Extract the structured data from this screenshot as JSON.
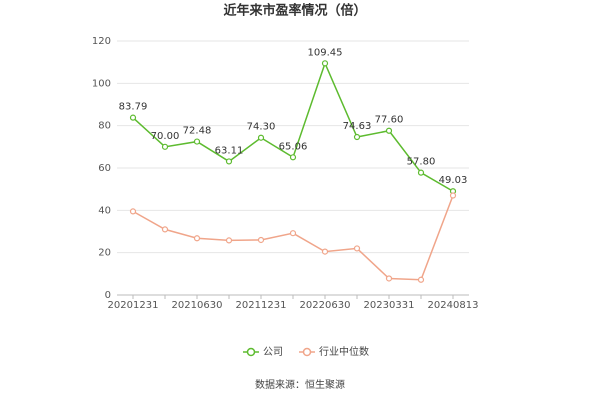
{
  "chart_data": {
    "type": "line",
    "title": "近年来市盈率情况（倍）",
    "categories": [
      "20201231",
      null,
      "20210630",
      null,
      "20211231",
      null,
      "20220630",
      null,
      "20230331",
      null,
      "20240813"
    ],
    "series": [
      {
        "name": "公司",
        "color": "#5dbb2f",
        "values": [
          83.79,
          70.0,
          72.48,
          63.11,
          74.3,
          65.06,
          109.45,
          74.63,
          77.6,
          57.8,
          49.03
        ],
        "value_labels": [
          "83.79",
          "70.00",
          "72.48",
          "63.11",
          "74.30",
          "65.06",
          "109.45",
          "74.63",
          "77.60",
          "57.80",
          "49.03"
        ]
      },
      {
        "name": "行业中位数",
        "color": "#f0a58a",
        "values": [
          39.5,
          31.0,
          26.8,
          25.8,
          26.0,
          29.2,
          20.5,
          22.0,
          7.8,
          7.2,
          47.0
        ]
      }
    ],
    "ylim": [
      0,
      120
    ],
    "yticks": [
      0,
      20,
      40,
      60,
      80,
      100,
      120
    ],
    "grid": true,
    "source": "数据来源：恒生聚源"
  }
}
